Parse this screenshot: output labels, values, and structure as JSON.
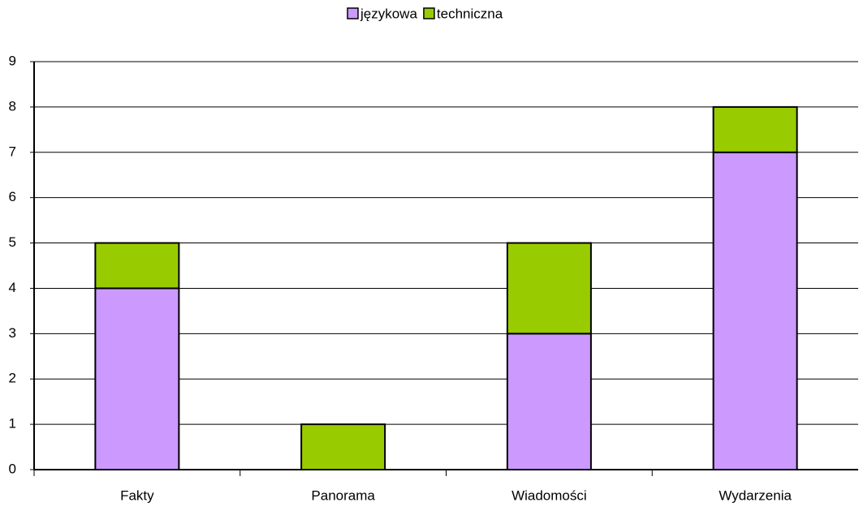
{
  "chart_data": {
    "type": "stacked_bar",
    "categories": [
      "Fakty",
      "Panorama",
      "Wiadomości",
      "Wydarzenia"
    ],
    "series": [
      {
        "name": "językowa",
        "color": "#cc99ff",
        "values": [
          4,
          0,
          3,
          7
        ]
      },
      {
        "name": "techniczna",
        "color": "#99cc00",
        "values": [
          1,
          1,
          2,
          1
        ]
      }
    ],
    "ylim": [
      0,
      9
    ],
    "yticks": [
      0,
      1,
      2,
      3,
      4,
      5,
      6,
      7,
      8,
      9
    ],
    "grid": true,
    "legend": "top"
  }
}
